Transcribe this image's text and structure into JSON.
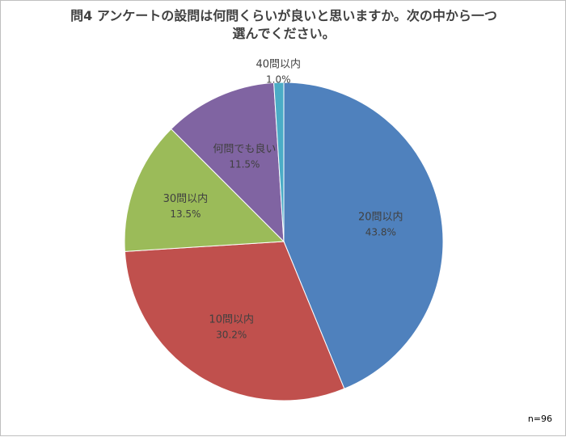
{
  "chart_data": {
    "type": "pie",
    "title_line1": "問4 アンケートの設問は何問くらいが良いと思いますか。次の中から一つ",
    "title_line2": "選んでください。",
    "note": "n=96",
    "slices": [
      {
        "label": "20問以内",
        "value": 43.8,
        "display": "43.8%",
        "color": "#4f81bd"
      },
      {
        "label": "10問以内",
        "value": 30.2,
        "display": "30.2%",
        "color": "#c0504d"
      },
      {
        "label": "30問以内",
        "value": 13.5,
        "display": "13.5%",
        "color": "#9bbb59"
      },
      {
        "label": "何問でも良い",
        "value": 11.5,
        "display": "11.5%",
        "color": "#8064a2"
      },
      {
        "label": "40問以内",
        "value": 1.0,
        "display": "1.0%",
        "color": "#4bacc6"
      }
    ]
  }
}
